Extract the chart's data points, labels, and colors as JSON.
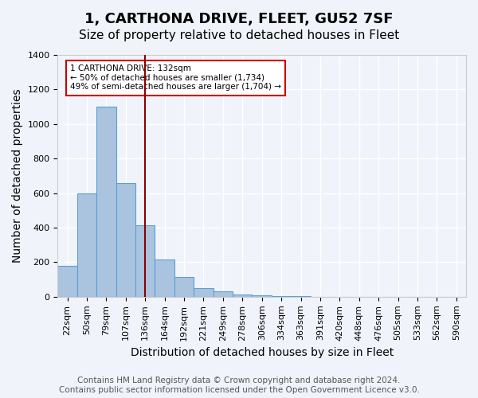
{
  "title": "1, CARTHONA DRIVE, FLEET, GU52 7SF",
  "subtitle": "Size of property relative to detached houses in Fleet",
  "xlabel": "Distribution of detached houses by size in Fleet",
  "ylabel": "Number of detached properties",
  "bins": [
    "22sqm",
    "50sqm",
    "79sqm",
    "107sqm",
    "136sqm",
    "164sqm",
    "192sqm",
    "221sqm",
    "249sqm",
    "278sqm",
    "306sqm",
    "334sqm",
    "363sqm",
    "391sqm",
    "420sqm",
    "448sqm",
    "476sqm",
    "505sqm",
    "533sqm",
    "562sqm",
    "590sqm"
  ],
  "counts": [
    180,
    600,
    1100,
    660,
    415,
    215,
    115,
    50,
    30,
    15,
    8,
    3,
    2,
    1,
    1,
    0,
    0,
    0,
    0,
    0,
    0
  ],
  "bar_color": "#aac4e0",
  "bar_edge_color": "#5a9fd4",
  "vline_x_index": 4,
  "vline_color": "#8b0000",
  "annotation_text": "1 CARTHONA DRIVE: 132sqm\n← 50% of detached houses are smaller (1,734)\n49% of semi-detached houses are larger (1,704) →",
  "annotation_box_color": "#ffffff",
  "annotation_box_edge": "#cc0000",
  "ylim": [
    0,
    1400
  ],
  "yticks": [
    0,
    200,
    400,
    600,
    800,
    1000,
    1200,
    1400
  ],
  "footer": "Contains HM Land Registry data © Crown copyright and database right 2024.\nContains public sector information licensed under the Open Government Licence v3.0.",
  "bg_color": "#f0f4fa",
  "grid_color": "#ffffff",
  "title_fontsize": 13,
  "subtitle_fontsize": 11,
  "label_fontsize": 10,
  "tick_fontsize": 8,
  "footer_fontsize": 7.5
}
